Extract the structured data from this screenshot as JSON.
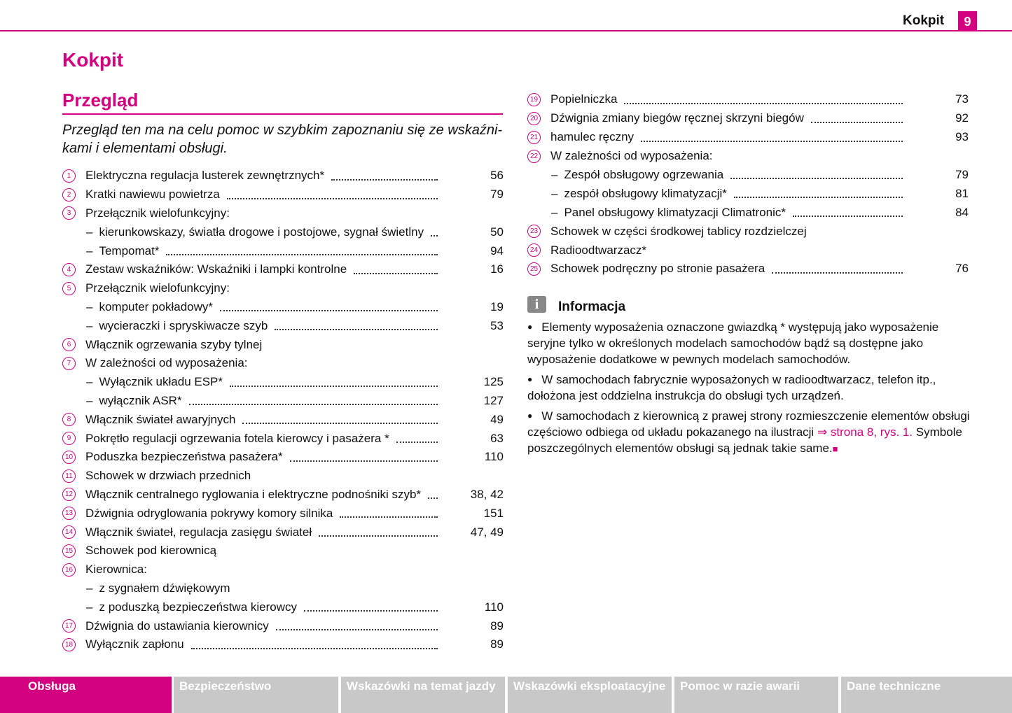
{
  "header": {
    "title": "Kokpit",
    "page": "9"
  },
  "heading": "Kokpit",
  "section": {
    "title": "Przegląd",
    "intro": "Przegląd ten ma na celu pomoc w szybkim zapoznaniu się ze wskaźni-kami i elementami obsługi."
  },
  "left_entries": [
    {
      "number": "1",
      "text": "Elektryczna regulacja lusterek zewnętrznych*",
      "page": "56"
    },
    {
      "number": "2",
      "text": "Kratki nawiewu powietrza",
      "page": "79"
    },
    {
      "number": "3",
      "text": "Przełącznik wielofunkcyjny:"
    },
    {
      "text": "kierunkowskazy, światła drogowe i postojowe, sygnał świetlny",
      "page": "50"
    },
    {
      "text": "Tempomat*",
      "page": "94"
    },
    {
      "number": "4",
      "text": "Zestaw wskaźników: Wskaźniki i lampki kontrolne",
      "page": "16"
    },
    {
      "number": "5",
      "text": "Przełącznik wielofunkcyjny:"
    },
    {
      "text": "komputer pokładowy*",
      "page": "19"
    },
    {
      "text": "wycieraczki i spryskiwacze szyb",
      "page": "53"
    },
    {
      "number": "6",
      "text": "Włącznik ogrzewania szyby tylnej"
    },
    {
      "number": "7",
      "text": "W zależności od wyposażenia:"
    },
    {
      "text": "Wyłącznik układu ESP*",
      "page": "125"
    },
    {
      "text": "wyłącznik ASR*",
      "page": "127"
    },
    {
      "number": "8",
      "text": "Włącznik świateł awaryjnych",
      "page": "49"
    },
    {
      "number": "9",
      "text": "Pokrętło regulacji ogrzewania fotela kierowcy i pasażera *",
      "page": "63"
    },
    {
      "number": "10",
      "text": "Poduszka bezpieczeństwa pasażera*",
      "page": "110"
    },
    {
      "number": "11",
      "text": "Schowek w drzwiach przednich"
    },
    {
      "number": "12",
      "text": "Włącznik centralnego ryglowania i elektryczne podnośniki szyb*",
      "page": "38, 42"
    },
    {
      "number": "13",
      "text": "Dźwignia odryglowania pokrywy komory silnika",
      "page": "151"
    },
    {
      "number": "14",
      "text": "Włącznik świateł, regulacja zasięgu świateł",
      "page": "47, 49"
    },
    {
      "number": "15",
      "text": "Schowek pod kierownicą"
    },
    {
      "number": "16",
      "text": "Kierownica:"
    },
    {
      "text": "z sygnałem dźwiękowym"
    },
    {
      "text": "z poduszką bezpieczeństwa kierowcy",
      "page": "110"
    },
    {
      "number": "17",
      "text": "Dźwignia do ustawiania kierownicy",
      "page": "89"
    },
    {
      "number": "18",
      "text": "Wyłącznik zapłonu",
      "page": "89"
    }
  ],
  "right_entries": [
    {
      "number": "19",
      "text": "Popielniczka",
      "page": "73"
    },
    {
      "number": "20",
      "text": "Dźwignia zmiany biegów ręcznej skrzyni biegów",
      "page": "92"
    },
    {
      "number": "21",
      "text": "hamulec ręczny",
      "page": "93"
    },
    {
      "number": "22",
      "text": "W zależności od wyposażenia:"
    },
    {
      "text": "Zespół obsługowy ogrzewania",
      "page": "79"
    },
    {
      "text": "zespół obsługowy klimatyzacji*",
      "page": "81"
    },
    {
      "text": "Panel obsługowy klimatyzacji Climatronic*",
      "page": "84"
    },
    {
      "number": "23",
      "text": "Schowek w części środkowej tablicy rozdzielczej"
    },
    {
      "number": "24",
      "text": "Radioodtwarzacz*"
    },
    {
      "number": "25",
      "text": "Schowek podręczny po stronie pasażera",
      "page": "76"
    }
  ],
  "info": {
    "title": "Informacja",
    "bullets": [
      {
        "text": "Elementy wyposażenia oznaczone gwiazdką * występują jako wyposażenie seryjne tylko w określonych modelach samochodów bądź są dostępne jako wyposażenie dodatkowe w pewnych modelach samochodów."
      },
      {
        "text": "W samochodach fabrycznie wyposażonych w radioodtwarzacz, telefon itp., dołożona jest oddzielna instrukcja do obsługi tych urządzeń."
      },
      {
        "text": "W samochodach z kierownicą z prawej strony rozmieszczenie elementów obsługi częściowo odbiega od układu pokazanego na ilustracji ",
        "link": "⇒ strona 8, rys. 1.",
        "after": " Symbole poszczególnych elementów obsługi są jednak takie same."
      }
    ]
  },
  "footer_tabs": [
    "Obsługa",
    "Bezpieczeństwo",
    "Wskazówki na temat jazdy",
    "Wskazówki eksploatacyjne",
    "Pomoc w razie awarii",
    "Dane techniczne"
  ]
}
